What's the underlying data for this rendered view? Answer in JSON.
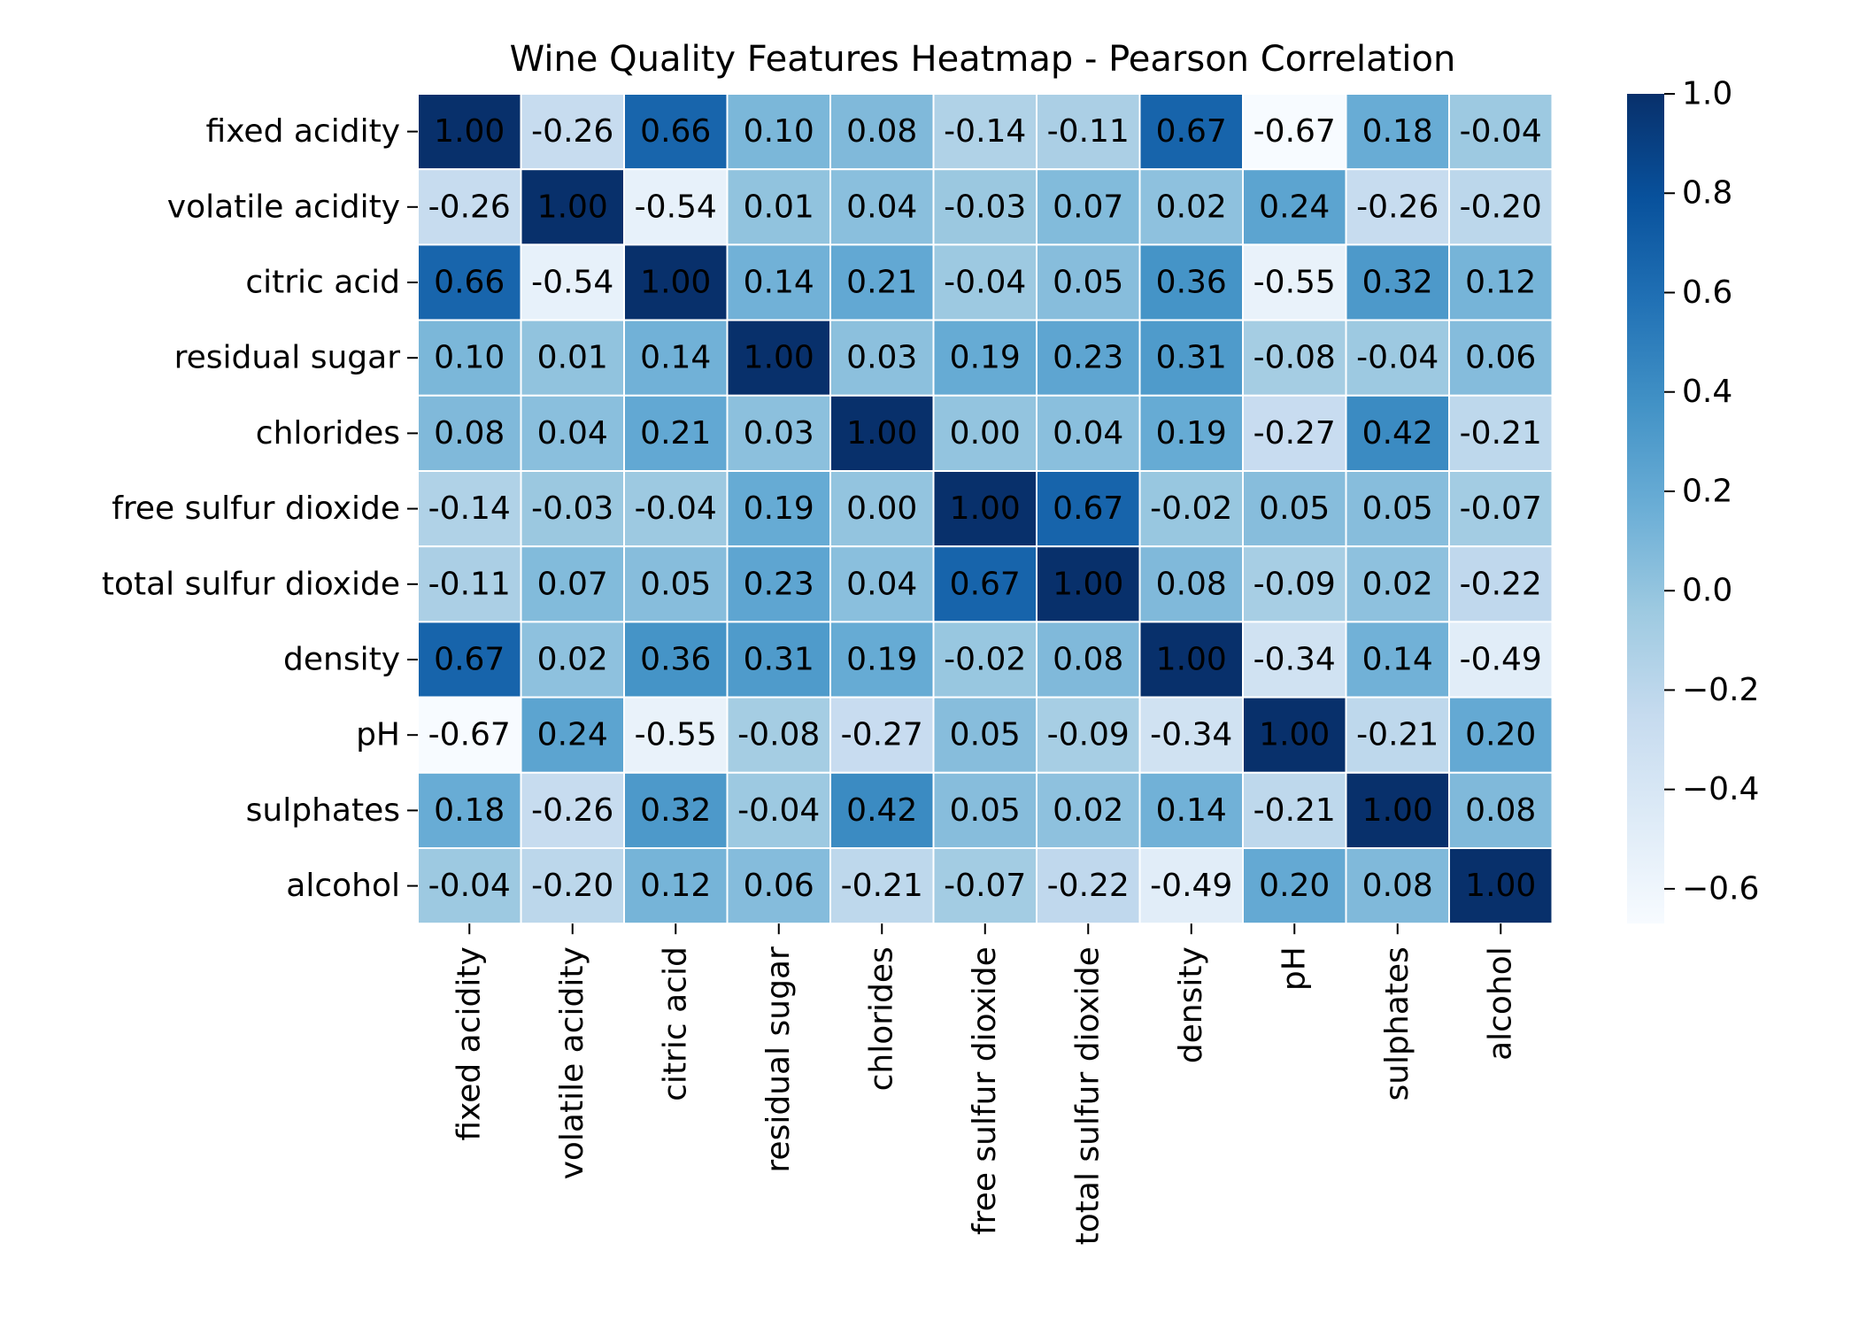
{
  "chart_data": {
    "type": "heatmap",
    "title": "Wine Quality Features Heatmap - Pearson Correlation",
    "xlabel": "",
    "ylabel": "",
    "rows": [
      "fixed acidity",
      "volatile acidity",
      "citric acid",
      "residual sugar",
      "chlorides",
      "free sulfur dioxide",
      "total sulfur dioxide",
      "density",
      "pH",
      "sulphates",
      "alcohol"
    ],
    "columns": [
      "fixed acidity",
      "volatile acidity",
      "citric acid",
      "residual sugar",
      "chlorides",
      "free sulfur dioxide",
      "total sulfur dioxide",
      "density",
      "pH",
      "sulphates",
      "alcohol"
    ],
    "values": [
      [
        1.0,
        -0.26,
        0.66,
        0.1,
        0.08,
        -0.14,
        -0.11,
        0.67,
        -0.67,
        0.18,
        -0.04
      ],
      [
        -0.26,
        1.0,
        -0.54,
        0.01,
        0.04,
        -0.03,
        0.07,
        0.02,
        0.24,
        -0.26,
        -0.2
      ],
      [
        0.66,
        -0.54,
        1.0,
        0.14,
        0.21,
        -0.04,
        0.05,
        0.36,
        -0.55,
        0.32,
        0.12
      ],
      [
        0.1,
        0.01,
        0.14,
        1.0,
        0.03,
        0.19,
        0.23,
        0.31,
        -0.08,
        -0.04,
        0.06
      ],
      [
        0.08,
        0.04,
        0.21,
        0.03,
        1.0,
        0.0,
        0.04,
        0.19,
        -0.27,
        0.42,
        -0.21
      ],
      [
        -0.14,
        -0.03,
        -0.04,
        0.19,
        0.0,
        1.0,
        0.67,
        -0.02,
        0.05,
        0.05,
        -0.07
      ],
      [
        -0.11,
        0.07,
        0.05,
        0.23,
        0.04,
        0.67,
        1.0,
        0.08,
        -0.09,
        0.02,
        -0.22
      ],
      [
        0.67,
        0.02,
        0.36,
        0.31,
        0.19,
        -0.02,
        0.08,
        1.0,
        -0.34,
        0.14,
        -0.49
      ],
      [
        -0.67,
        0.24,
        -0.55,
        -0.08,
        -0.27,
        0.05,
        -0.09,
        -0.34,
        1.0,
        -0.21,
        0.2
      ],
      [
        0.18,
        -0.26,
        0.32,
        -0.04,
        0.42,
        0.05,
        0.02,
        0.14,
        -0.21,
        1.0,
        0.08
      ],
      [
        -0.04,
        -0.2,
        0.12,
        0.06,
        -0.21,
        -0.07,
        -0.22,
        -0.49,
        0.2,
        0.08,
        1.0
      ]
    ],
    "value_range": [
      -0.67,
      1.0
    ],
    "colormap": "Blues",
    "colormap_stops": [
      "#f7fbff",
      "#deebf7",
      "#c6dbef",
      "#9ecae1",
      "#6baed6",
      "#4292c6",
      "#2171b5",
      "#08519c",
      "#08306b"
    ],
    "annotation_format": "0.00",
    "cell_border_color": "#ffffff",
    "colorbar": {
      "ticks": [
        1.0,
        0.8,
        0.6,
        0.4,
        0.2,
        0.0,
        -0.2,
        -0.4,
        -0.6
      ],
      "tick_labels": [
        "1.0",
        "0.8",
        "0.6",
        "0.4",
        "0.2",
        "0.0",
        "−0.2",
        "−0.4",
        "−0.6"
      ]
    }
  }
}
